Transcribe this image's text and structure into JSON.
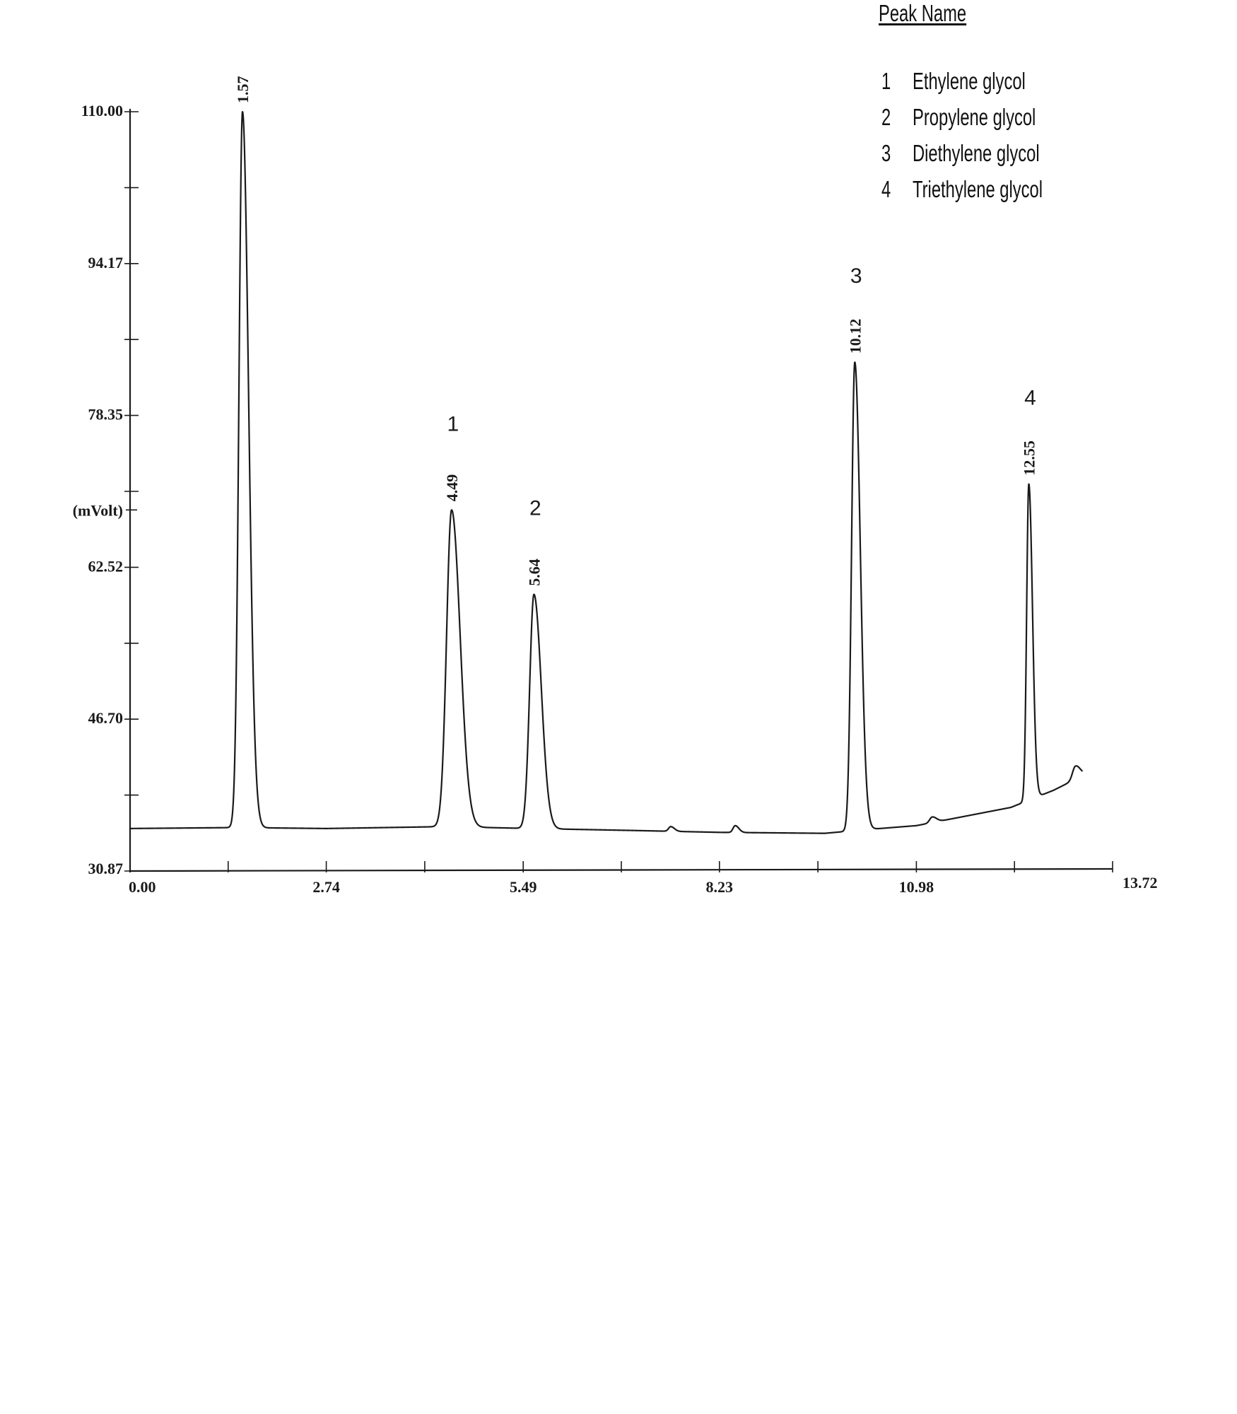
{
  "legend": {
    "title": "Peak Name",
    "items": [
      {
        "num": "1",
        "name": "Ethylene glycol"
      },
      {
        "num": "2",
        "name": "Propylene glycol"
      },
      {
        "num": "3",
        "name": "Diethylene glycol"
      },
      {
        "num": "4",
        "name": "Triethylene glycol"
      }
    ]
  },
  "chart_data": {
    "type": "line",
    "title": "",
    "xlabel": "",
    "ylabel": "(mVolt)",
    "xlim": [
      0,
      13.72
    ],
    "ylim": [
      30.87,
      110.0
    ],
    "x_ticks": [
      "0.00",
      "2.74",
      "5.49",
      "8.23",
      "10.98",
      "13.72"
    ],
    "y_ticks": [
      "110.00",
      "94.17",
      "78.35",
      "62.52",
      "46.70",
      "30.87"
    ],
    "grid": false,
    "legend_position": "top-right",
    "baseline_points": [
      {
        "x": 0.0,
        "y": 35.3
      },
      {
        "x": 1.5,
        "y": 35.4
      },
      {
        "x": 2.74,
        "y": 35.3
      },
      {
        "x": 4.4,
        "y": 35.5
      },
      {
        "x": 5.6,
        "y": 35.3
      },
      {
        "x": 7.0,
        "y": 35.1
      },
      {
        "x": 8.23,
        "y": 34.9
      },
      {
        "x": 9.7,
        "y": 34.8
      },
      {
        "x": 10.3,
        "y": 35.2
      },
      {
        "x": 10.98,
        "y": 35.6
      },
      {
        "x": 12.3,
        "y": 37.5
      },
      {
        "x": 12.9,
        "y": 39.3
      },
      {
        "x": 13.3,
        "y": 40.8
      }
    ],
    "peaks": [
      {
        "rt": 1.57,
        "rt_label": "1.57",
        "height": 110.0,
        "width": 0.05,
        "label": ""
      },
      {
        "rt": 4.49,
        "rt_label": "4.49",
        "height": 68.5,
        "width": 0.07,
        "label": "1"
      },
      {
        "rt": 5.64,
        "rt_label": "5.64",
        "height": 59.7,
        "width": 0.06,
        "label": "2"
      },
      {
        "rt": 10.12,
        "rt_label": "10.12",
        "height": 83.9,
        "width": 0.045,
        "label": "3"
      },
      {
        "rt": 12.55,
        "rt_label": "12.55",
        "height": 71.2,
        "width": 0.03,
        "label": "4"
      },
      {
        "rt": 7.55,
        "rt_label": "",
        "height": 35.5,
        "width": 0.03,
        "label": ""
      },
      {
        "rt": 8.45,
        "rt_label": "",
        "height": 35.6,
        "width": 0.03,
        "label": ""
      },
      {
        "rt": 11.2,
        "rt_label": "",
        "height": 36.5,
        "width": 0.035,
        "label": ""
      },
      {
        "rt": 13.2,
        "rt_label": "",
        "height": 41.8,
        "width": 0.04,
        "label": ""
      }
    ]
  }
}
